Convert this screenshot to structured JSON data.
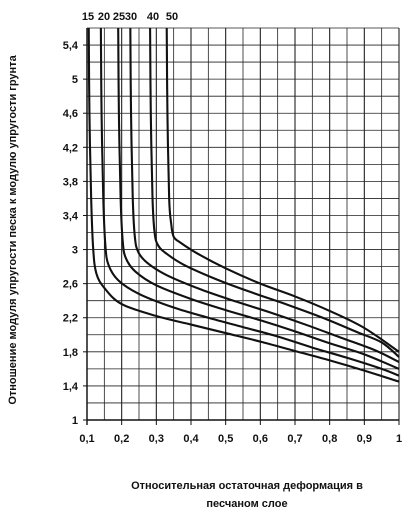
{
  "chart_data": {
    "type": "line",
    "title": "",
    "xlabel": [
      "Относительная остаточная деформация в",
      "песчаном слое"
    ],
    "ylabel": "Отношение модуля упругости песка к модулю упругости грунта",
    "xlim": [
      0.1,
      1.0
    ],
    "ylim": [
      1.0,
      5.6
    ],
    "x_ticks": [
      "0,1",
      "0,2",
      "0,3",
      "0,4",
      "0,5",
      "0,6",
      "0,7",
      "0,8",
      "0,9",
      "1"
    ],
    "y_ticks": [
      "1",
      "1,4",
      "1,8",
      "2,2",
      "2,6",
      "3",
      "3,4",
      "3,8",
      "4,2",
      "4,6",
      "5",
      "5,4"
    ],
    "grid": true,
    "line_color": "#111111",
    "series": [
      {
        "name": "15",
        "points": [
          [
            0.105,
            5.6
          ],
          [
            0.107,
            4.6
          ],
          [
            0.112,
            3.6
          ],
          [
            0.118,
            3.0
          ],
          [
            0.127,
            2.72
          ],
          [
            0.15,
            2.55
          ],
          [
            0.2,
            2.36
          ],
          [
            0.3,
            2.22
          ],
          [
            0.4,
            2.12
          ],
          [
            0.5,
            2.02
          ],
          [
            0.6,
            1.92
          ],
          [
            0.7,
            1.81
          ],
          [
            0.8,
            1.7
          ],
          [
            0.9,
            1.58
          ],
          [
            1.0,
            1.45
          ]
        ]
      },
      {
        "name": "20",
        "points": [
          [
            0.14,
            5.6
          ],
          [
            0.142,
            4.6
          ],
          [
            0.147,
            3.6
          ],
          [
            0.153,
            3.05
          ],
          [
            0.162,
            2.82
          ],
          [
            0.19,
            2.64
          ],
          [
            0.25,
            2.48
          ],
          [
            0.35,
            2.32
          ],
          [
            0.45,
            2.2
          ],
          [
            0.55,
            2.09
          ],
          [
            0.65,
            1.98
          ],
          [
            0.75,
            1.85
          ],
          [
            0.85,
            1.73
          ],
          [
            0.95,
            1.6
          ],
          [
            1.0,
            1.52
          ]
        ]
      },
      {
        "name": "25",
        "points": [
          [
            0.19,
            5.6
          ],
          [
            0.192,
            4.6
          ],
          [
            0.197,
            3.6
          ],
          [
            0.203,
            3.1
          ],
          [
            0.212,
            2.9
          ],
          [
            0.24,
            2.74
          ],
          [
            0.3,
            2.58
          ],
          [
            0.4,
            2.42
          ],
          [
            0.5,
            2.29
          ],
          [
            0.6,
            2.17
          ],
          [
            0.7,
            2.04
          ],
          [
            0.8,
            1.9
          ],
          [
            0.9,
            1.77
          ],
          [
            1.0,
            1.6
          ]
        ]
      },
      {
        "name": "30",
        "points": [
          [
            0.225,
            5.6
          ],
          [
            0.227,
            4.6
          ],
          [
            0.232,
            3.6
          ],
          [
            0.238,
            3.15
          ],
          [
            0.248,
            2.97
          ],
          [
            0.275,
            2.84
          ],
          [
            0.33,
            2.7
          ],
          [
            0.43,
            2.53
          ],
          [
            0.53,
            2.39
          ],
          [
            0.63,
            2.26
          ],
          [
            0.73,
            2.12
          ],
          [
            0.83,
            1.97
          ],
          [
            0.93,
            1.82
          ],
          [
            1.0,
            1.68
          ]
        ]
      },
      {
        "name": "40",
        "points": [
          [
            0.282,
            5.6
          ],
          [
            0.284,
            4.6
          ],
          [
            0.289,
            3.6
          ],
          [
            0.295,
            3.2
          ],
          [
            0.305,
            3.05
          ],
          [
            0.33,
            2.95
          ],
          [
            0.38,
            2.82
          ],
          [
            0.48,
            2.64
          ],
          [
            0.58,
            2.49
          ],
          [
            0.68,
            2.35
          ],
          [
            0.78,
            2.2
          ],
          [
            0.88,
            2.03
          ],
          [
            0.95,
            1.91
          ],
          [
            1.0,
            1.74
          ]
        ]
      },
      {
        "name": "50",
        "points": [
          [
            0.33,
            5.6
          ],
          [
            0.332,
            4.6
          ],
          [
            0.337,
            3.6
          ],
          [
            0.343,
            3.3
          ],
          [
            0.35,
            3.15
          ],
          [
            0.37,
            3.08
          ],
          [
            0.42,
            2.95
          ],
          [
            0.5,
            2.78
          ],
          [
            0.6,
            2.6
          ],
          [
            0.7,
            2.45
          ],
          [
            0.8,
            2.28
          ],
          [
            0.9,
            2.08
          ],
          [
            1.0,
            1.8
          ]
        ]
      }
    ]
  }
}
